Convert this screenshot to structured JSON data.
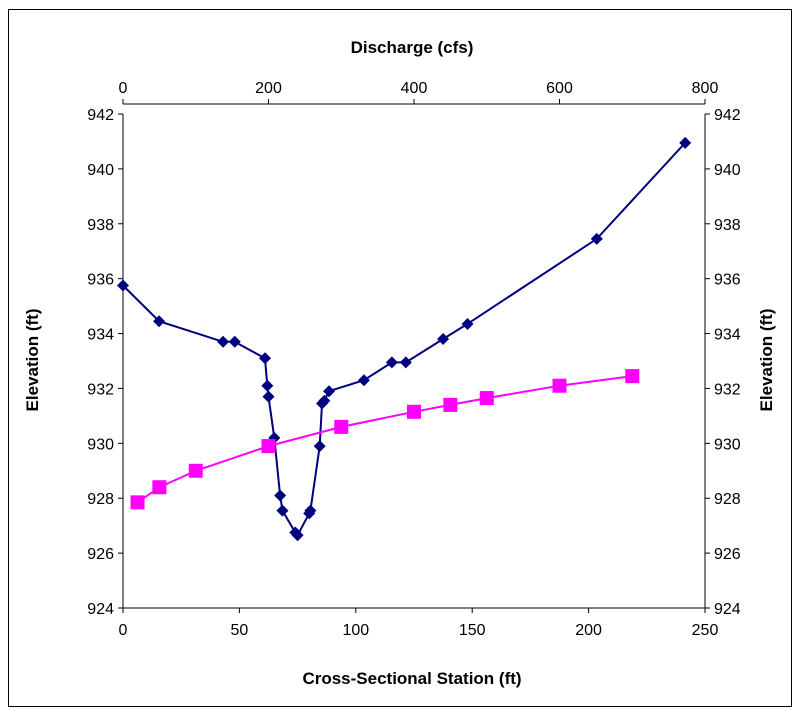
{
  "chart_data": {
    "type": "scatter",
    "x_bottom_label": "Cross-Sectional Station (ft)",
    "x_top_label": "Discharge (cfs)",
    "y_left_label": "Elevation (ft)",
    "y_right_label": "Elevation (ft)",
    "x_bottom_range": [
      0,
      250
    ],
    "x_bottom_ticks": [
      "0",
      "50",
      "100",
      "150",
      "200",
      "250"
    ],
    "x_top_range": [
      0,
      800
    ],
    "x_top_ticks": [
      "0",
      "200",
      "400",
      "600",
      "800"
    ],
    "y_range": [
      924,
      942
    ],
    "y_ticks": [
      "924",
      "926",
      "928",
      "930",
      "932",
      "934",
      "936",
      "938",
      "940",
      "942"
    ],
    "grid": false,
    "legend": "none",
    "series": [
      {
        "axis": "bottom",
        "color": "#000080",
        "marker": "diamond",
        "points": [
          [
            0,
            935.75
          ],
          [
            15.5,
            934.45
          ],
          [
            43,
            933.7
          ],
          [
            48,
            933.7
          ],
          [
            61,
            933.1
          ],
          [
            62,
            932.1
          ],
          [
            62.5,
            931.7
          ],
          [
            65,
            930.2
          ],
          [
            67.5,
            928.1
          ],
          [
            68.5,
            927.55
          ],
          [
            74,
            926.75
          ],
          [
            75,
            926.65
          ],
          [
            80,
            927.45
          ],
          [
            80.5,
            927.55
          ],
          [
            84.5,
            929.9
          ],
          [
            85.5,
            931.45
          ],
          [
            86.5,
            931.55
          ],
          [
            88.5,
            931.9
          ],
          [
            103.5,
            932.3
          ],
          [
            115.5,
            932.95
          ],
          [
            121.5,
            932.95
          ],
          [
            137.5,
            933.8
          ],
          [
            148,
            934.35
          ],
          [
            203.5,
            937.45
          ],
          [
            241.5,
            940.95
          ]
        ]
      },
      {
        "axis": "top",
        "color": "#FF00FF",
        "marker": "square",
        "points": [
          [
            20,
            927.85
          ],
          [
            50,
            928.4
          ],
          [
            100,
            929.0
          ],
          [
            200,
            929.9
          ],
          [
            300,
            930.6
          ],
          [
            400,
            931.15
          ],
          [
            450,
            931.4
          ],
          [
            500,
            931.65
          ],
          [
            600,
            932.1
          ],
          [
            700,
            932.45
          ]
        ]
      }
    ]
  }
}
